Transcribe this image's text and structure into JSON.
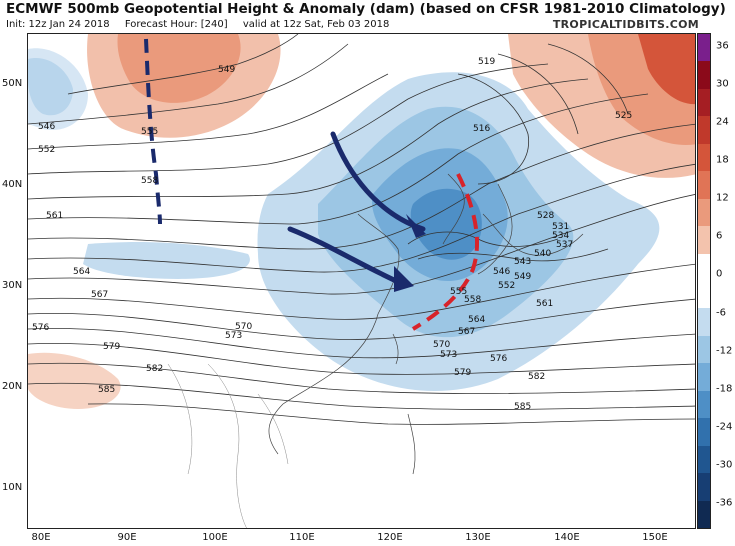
{
  "header": {
    "title": "ECMWF 500mb Geopotential Height & Anomaly (dam) (based on CFSR 1981-2010 Climatology)",
    "init": "Init: 12z Jan 24 2018",
    "forecast_hour": "Forecast Hour: [240]",
    "valid": "valid at 12z Sat, Feb 03 2018",
    "brand": "TROPICALTIDBITS.COM"
  },
  "axes": {
    "lat_labels": [
      "50N",
      "40N",
      "30N",
      "20N",
      "10N"
    ],
    "lon_labels": [
      "80E",
      "90E",
      "100E",
      "110E",
      "120E",
      "130E",
      "140E",
      "150E"
    ]
  },
  "colorbar": {
    "labels": [
      "36",
      "30",
      "24",
      "18",
      "12",
      "6",
      "0",
      "-6",
      "-12",
      "-18",
      "-24",
      "-30",
      "-36"
    ],
    "colors": [
      "#7a1f8c",
      "#8b0a1a",
      "#a51e23",
      "#c0392b",
      "#d4553a",
      "#e07456",
      "#ea9a7c",
      "#f3c3ad",
      "#ffffff",
      "#ffffff",
      "#c4dcef",
      "#9cc6e4",
      "#74acd8",
      "#4e8fc6",
      "#3171ad",
      "#205690",
      "#173e73",
      "#102a52"
    ]
  },
  "contours": {
    "labels": [
      "519",
      "525",
      "516",
      "528",
      "531",
      "534",
      "537",
      "540",
      "543",
      "546",
      "549",
      "552",
      "555",
      "558",
      "561",
      "564",
      "567",
      "570",
      "573",
      "576",
      "579",
      "582",
      "585",
      "546",
      "549",
      "552",
      "555",
      "558",
      "561",
      "564",
      "567",
      "570",
      "573",
      "576",
      "579",
      "582",
      "585"
    ]
  },
  "annotations": {
    "arrows": "navy-arrows",
    "trough_axis": "red-dashed",
    "ridge_axis": "navy-dashed"
  }
}
